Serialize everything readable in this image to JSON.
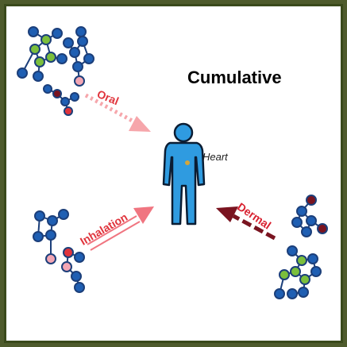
{
  "title": "Cumulative",
  "organ_label": "Heart",
  "routes": {
    "oral": "Oral",
    "inhalation": "Inhalation",
    "dermal": "Dermal"
  },
  "colors": {
    "frame": "#4e5b2c",
    "person": "#2f9be0",
    "oral_arrow": "#f6a6ab",
    "inhalation_arrow": "#f07580",
    "dermal_arrow": "#7a1420",
    "route_text": "#e0343c",
    "molecule_blue": "#1f5fb3",
    "molecule_green": "#7bbf3c",
    "molecule_pink": "#f3a6b4",
    "molecule_maroon": "#7a1420"
  }
}
